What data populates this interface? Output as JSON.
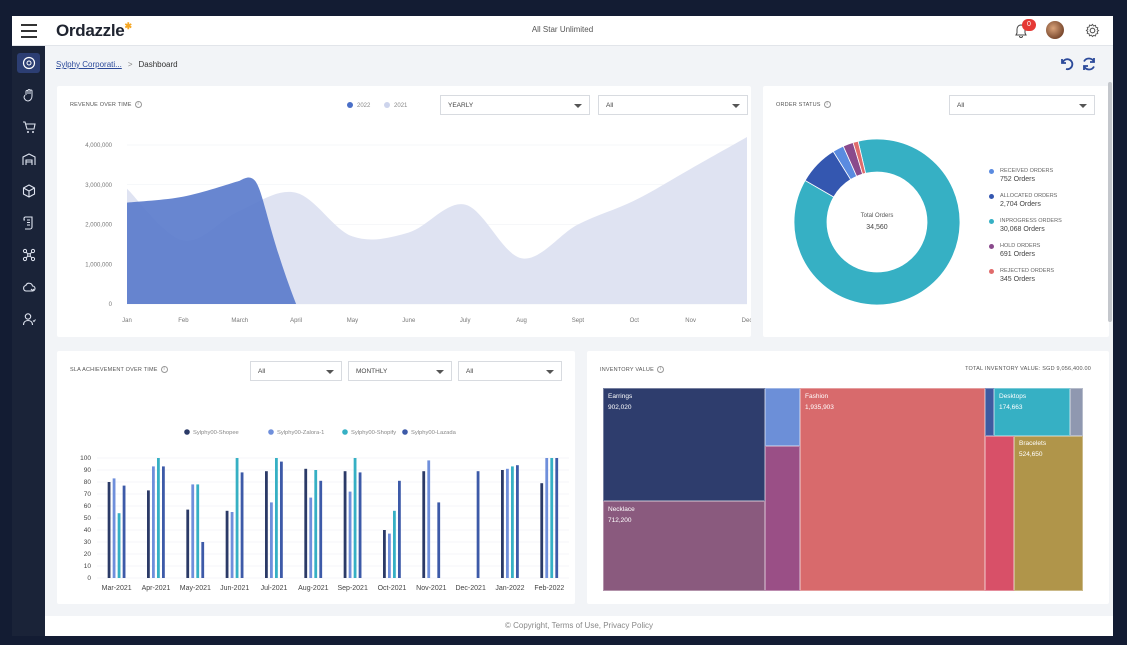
{
  "app": {
    "logo": "Ordazzle",
    "company": "All Star Unlimited",
    "notifications": "0"
  },
  "breadcrumb": {
    "parent": "Sylphy Corporati...",
    "current": "Dashboard"
  },
  "revenue": {
    "title": "REVENUE OVER TIME",
    "legend": [
      {
        "label": "2022",
        "color": "#4a6fc7"
      },
      {
        "label": "2021",
        "color": "#cdd4ec"
      }
    ],
    "filter1": "YEARLY",
    "filter2": "All"
  },
  "order_status": {
    "title": "ORDER STATUS",
    "filter": "All",
    "center_label": "Total Orders",
    "center_value": "34,560",
    "items": [
      {
        "name": "RECEIVED ORDERS",
        "count": "752 Orders",
        "color": "#5a8be0"
      },
      {
        "name": "ALLOCATED ORDERS",
        "count": "2,704 Orders",
        "color": "#3457b0"
      },
      {
        "name": "INPROGRESS ORDERS",
        "count": "30,068 Orders",
        "color": "#36b0c4"
      },
      {
        "name": "HOLD ORDERS",
        "count": "691 Orders",
        "color": "#8a4a8c"
      },
      {
        "name": "REJECTED ORDERS",
        "count": "345 Orders",
        "color": "#e06b6b"
      }
    ]
  },
  "sla": {
    "title": "SLA ACHIEVEMENT OVER TIME",
    "filter1": "All",
    "filter2": "MONTHLY",
    "filter3": "All"
  },
  "inventory": {
    "title": "INVENTORY VALUE",
    "total": "TOTAL INVENTORY VALUE: SGD 9,056,400.00",
    "tiles": [
      {
        "name": "Earrings",
        "value": "902,020"
      },
      {
        "name": "Necklace",
        "value": "712,200"
      },
      {
        "name": "Fashion",
        "value": "1,935,903"
      },
      {
        "name": "Desktops",
        "value": "174,663"
      },
      {
        "name": "Bracelets",
        "value": "524,650"
      }
    ]
  },
  "footer": {
    "text": "© Copyright, Terms of Use, Privacy Policy"
  },
  "chart_data": [
    {
      "type": "area",
      "title": "REVENUE OVER TIME",
      "x": [
        "Jan",
        "Feb",
        "March",
        "April",
        "May",
        "June",
        "July",
        "Aug",
        "Sept",
        "Oct",
        "Nov",
        "Dec"
      ],
      "yticks": [
        "4,000,000",
        "3,000,000",
        "2,000,000",
        "1,000,000",
        "0"
      ],
      "ylim": [
        0,
        4000000
      ],
      "series": [
        {
          "name": "2022",
          "values": [
            2550000,
            2700000,
            3100000,
            0,
            null,
            null,
            null,
            null,
            null,
            null,
            null,
            null
          ]
        },
        {
          "name": "2021",
          "values": [
            2900000,
            1600000,
            2350000,
            2800000,
            1700000,
            1800000,
            2500000,
            1150000,
            2000000,
            2600000,
            3400000,
            4200000
          ]
        }
      ]
    },
    {
      "type": "pie",
      "title": "ORDER STATUS",
      "categories": [
        "RECEIVED ORDERS",
        "ALLOCATED ORDERS",
        "INPROGRESS ORDERS",
        "HOLD ORDERS",
        "REJECTED ORDERS"
      ],
      "values": [
        752,
        2704,
        30068,
        691,
        345
      ]
    },
    {
      "type": "bar",
      "title": "SLA ACHIEVEMENT OVER TIME",
      "categories": [
        "Mar-2021",
        "Apr-2021",
        "May-2021",
        "Jun-2021",
        "Jul-2021",
        "Aug-2021",
        "Sep-2021",
        "Oct-2021",
        "Nov-2021",
        "Dec-2021",
        "Jan-2022",
        "Feb-2022"
      ],
      "yticks": [
        "100",
        "90",
        "80",
        "70",
        "60",
        "50",
        "40",
        "30",
        "20",
        "10",
        "0"
      ],
      "ylim": [
        0,
        100
      ],
      "series": [
        {
          "name": "Sylphy00-Shopee",
          "color": "#2b3a67",
          "values": [
            80,
            73,
            57,
            56,
            89,
            91,
            89,
            40,
            89,
            null,
            90,
            79
          ]
        },
        {
          "name": "Sylphy00-Zalora-1",
          "color": "#6f8fdb",
          "values": [
            83,
            93,
            78,
            55,
            63,
            67,
            72,
            37,
            98,
            null,
            91,
            100
          ]
        },
        {
          "name": "Sylphy00-Shopify",
          "color": "#36b0c4",
          "values": [
            54,
            100,
            78,
            100,
            100,
            90,
            100,
            56,
            null,
            null,
            93,
            100
          ]
        },
        {
          "name": "Sylphy00-Lazada",
          "color": "#3d5aa8",
          "values": [
            77,
            93,
            30,
            88,
            97,
            81,
            88,
            81,
            63,
            89,
            94,
            100
          ]
        }
      ]
    },
    {
      "type": "table",
      "title": "INVENTORY VALUE",
      "categories": [
        "Earrings",
        "Necklace",
        "Fashion",
        "Desktops",
        "Bracelets"
      ],
      "values": [
        902020,
        712200,
        1935903,
        174663,
        524650
      ]
    }
  ]
}
